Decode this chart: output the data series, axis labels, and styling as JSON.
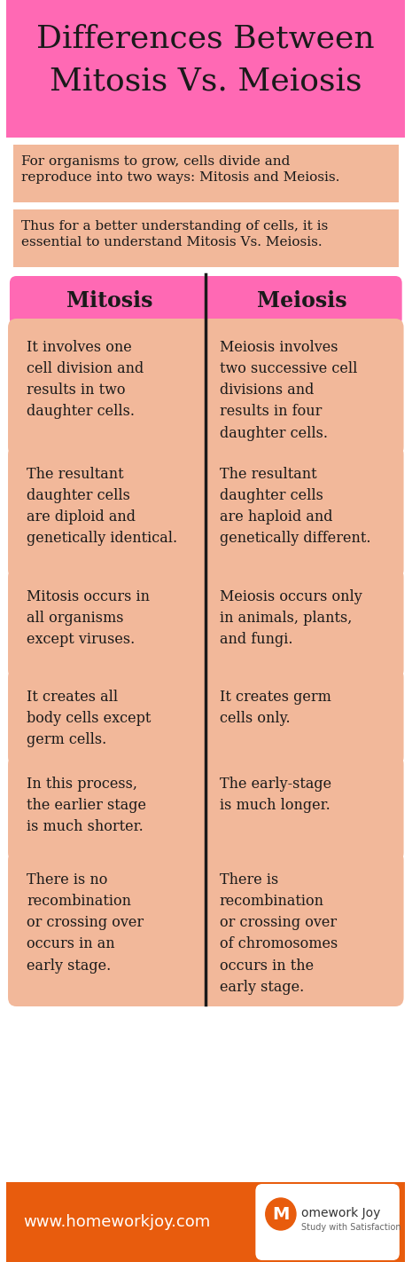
{
  "title": "Differences Between\nMitosis Vs. Meiosis",
  "title_bg": "#FF69B4",
  "title_color": "#1a1a1a",
  "intro_bg": "#F2B89A",
  "intro_text1": "For organisms to grow, cells divide and\nreproduce into two ways: Mitosis and Meiosis.",
  "intro_text2": "Thus for a better understanding of cells, it is\nessential to understand Mitosis Vs. Meiosis.",
  "header_bg": "#FF69B4",
  "header_color": "#1a1a1a",
  "col_headers": [
    "Mitosis",
    "Meiosis"
  ],
  "card_bg": "#F2B89A",
  "card_text_color": "#1a1a1a",
  "divider_color": "#1a1a1a",
  "main_bg": "#ffffff",
  "rows": [
    [
      "It involves one\ncell division and\nresults in two\ndaughter cells.",
      "Meiosis involves\ntwo successive cell\ndivisions and\nresults in four\ndaughter cells."
    ],
    [
      "The resultant\ndaughter cells\nare diploid and\ngenetically identical.",
      "The resultant\ndaughter cells\nare haploid and\ngenetically different."
    ],
    [
      "Mitosis occurs in\nall organisms\nexcept viruses.",
      "Meiosis occurs only\nin animals, plants,\nand fungi."
    ],
    [
      "It creates all\nbody cells except\ngerm cells.",
      "It creates germ\ncells only."
    ],
    [
      "In this process,\nthe earlier stage\nis much shorter.",
      "The early-stage\nis much longer."
    ],
    [
      "There is no\nrecombination\nor crossing over\noccurs in an\nearly stage.",
      "There is\nrecombination\nor crossing over\nof chromosomes\noccurs in the\nearly stage."
    ]
  ],
  "footer_bg": "#E85C0D",
  "footer_text": "www.homeworkjoy.com",
  "footer_text_color": "#ffffff",
  "footer_logo_text1": "Homework Joy",
  "footer_logo_text2": "Study with Satisfaction"
}
